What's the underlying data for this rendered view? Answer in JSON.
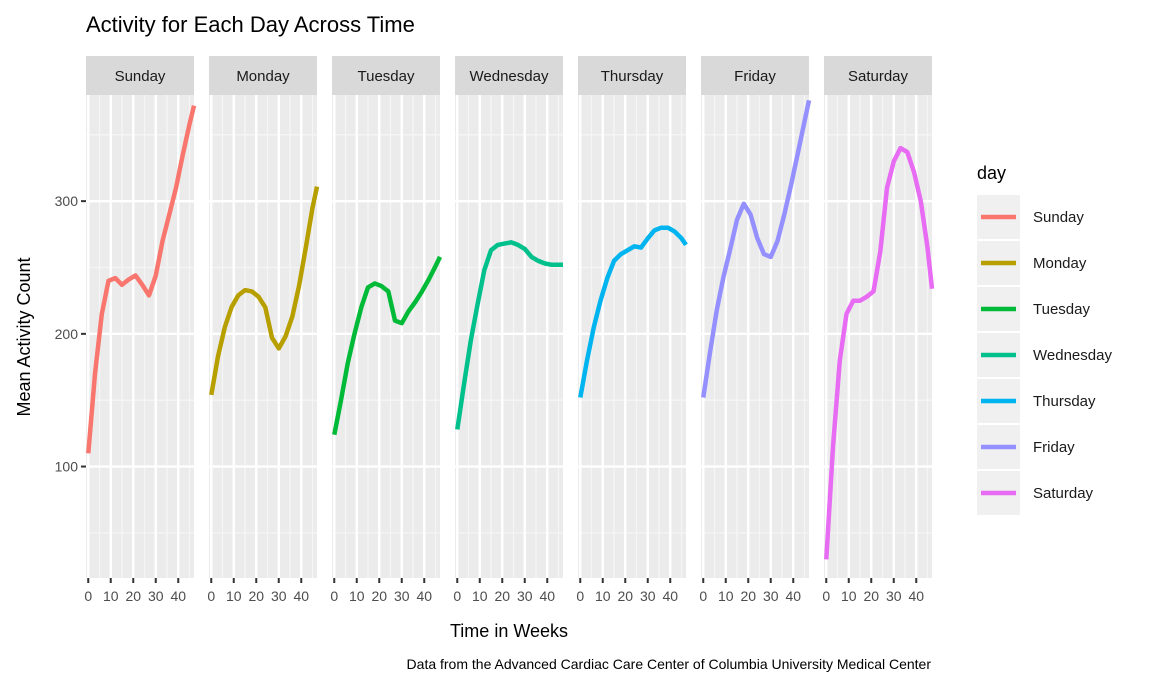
{
  "chart_data": {
    "type": "line",
    "title": "Activity for Each Day Across Time",
    "xlabel": "Time in Weeks",
    "ylabel": "Mean Activity Count",
    "caption": "Data from the Advanced Cardiac Care Center of Columbia University Medical Center",
    "xlim": [
      -1,
      47
    ],
    "ylim": [
      16,
      380
    ],
    "x_ticks": [
      0,
      10,
      20,
      30,
      40
    ],
    "y_ticks": [
      100,
      200,
      300
    ],
    "grid": true,
    "legend": {
      "title": "day",
      "position": "right"
    },
    "panel_background": "#ebebeb",
    "strip_background": "#d9d9d9",
    "series": [
      {
        "name": "Sunday",
        "color": "#F8766D",
        "x": [
          0,
          3,
          6,
          9,
          12,
          15,
          18,
          21,
          24,
          27,
          30,
          33,
          36,
          39,
          42,
          45,
          47
        ],
        "y": [
          110,
          170,
          215,
          240,
          242,
          237,
          241,
          244,
          237,
          229,
          244,
          270,
          290,
          310,
          335,
          358,
          372
        ]
      },
      {
        "name": "Monday",
        "color": "#B79F00",
        "x": [
          0,
          3,
          6,
          9,
          12,
          15,
          18,
          21,
          24,
          27,
          30,
          33,
          36,
          39,
          42,
          45,
          47
        ],
        "y": [
          154,
          183,
          205,
          220,
          229,
          233,
          232,
          228,
          220,
          197,
          189,
          198,
          213,
          236,
          265,
          295,
          311
        ]
      },
      {
        "name": "Tuesday",
        "color": "#00BA38",
        "x": [
          0,
          3,
          6,
          9,
          12,
          15,
          18,
          21,
          24,
          27,
          30,
          33,
          36,
          39,
          42,
          45,
          47
        ],
        "y": [
          124,
          150,
          178,
          200,
          220,
          235,
          238,
          236,
          232,
          210,
          208,
          217,
          224,
          232,
          241,
          251,
          258
        ]
      },
      {
        "name": "Wednesday",
        "color": "#00C08B",
        "x": [
          0,
          3,
          6,
          9,
          12,
          15,
          18,
          21,
          24,
          27,
          30,
          33,
          36,
          39,
          42,
          45,
          47
        ],
        "y": [
          128,
          162,
          195,
          222,
          248,
          263,
          267,
          268,
          269,
          267,
          264,
          258,
          255,
          253,
          252,
          252,
          252
        ]
      },
      {
        "name": "Thursday",
        "color": "#00B4EF",
        "x": [
          0,
          3,
          6,
          9,
          12,
          15,
          18,
          21,
          24,
          27,
          30,
          33,
          36,
          39,
          42,
          45,
          47
        ],
        "y": [
          152,
          180,
          205,
          225,
          242,
          255,
          260,
          263,
          266,
          265,
          272,
          278,
          280,
          280,
          277,
          272,
          267
        ]
      },
      {
        "name": "Friday",
        "color": "#9590FF",
        "x": [
          0,
          3,
          6,
          9,
          12,
          15,
          18,
          21,
          24,
          27,
          30,
          33,
          36,
          39,
          42,
          45,
          47
        ],
        "y": [
          152,
          186,
          218,
          243,
          264,
          286,
          298,
          290,
          272,
          260,
          258,
          270,
          290,
          312,
          336,
          360,
          376
        ]
      },
      {
        "name": "Saturday",
        "color": "#E76BF3",
        "x": [
          0,
          3,
          6,
          9,
          12,
          15,
          18,
          21,
          24,
          27,
          30,
          33,
          36,
          39,
          42,
          45,
          47
        ],
        "y": [
          30,
          115,
          180,
          215,
          225,
          225,
          228,
          232,
          262,
          310,
          330,
          340,
          337,
          322,
          300,
          265,
          234
        ]
      }
    ]
  }
}
